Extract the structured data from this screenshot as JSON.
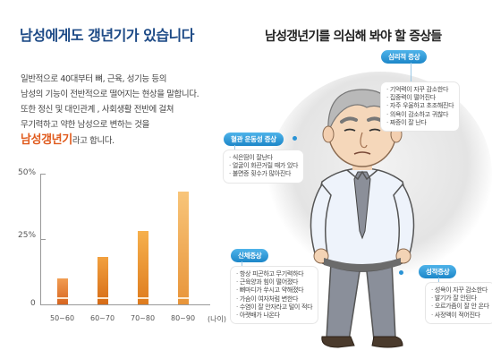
{
  "header": {
    "left_title": "남성에게도 갱년기가 있습니다",
    "right_title": "남성갱년기를 의심해 봐야 할 증상들"
  },
  "intro": {
    "lines": [
      "일반적으로 40대부터 뼈, 근육, 성기능 등의",
      "남성의 기능이 전반적으로 떨어지는 현상을 말합니다.",
      "또한 정신 및 대인관계 , 사회생활 전반에 걸쳐",
      "무기력하고 약한 남성으로 변하는 것을"
    ],
    "highlight": "남성갱년기",
    "suffix": "라고 합니다."
  },
  "chart_data": {
    "type": "bar",
    "categories": [
      "50~60",
      "60~70",
      "70~80",
      "80~90"
    ],
    "values": [
      10,
      18,
      28,
      43
    ],
    "ylim": [
      0,
      50
    ],
    "yticks": [
      "50%",
      "25%",
      "0"
    ],
    "xunit": "(나이)",
    "colors": [
      "#d76520",
      "#d66b16",
      "#de7b1e",
      "#e8953a"
    ]
  },
  "symptoms": {
    "psych": {
      "label": "심리적 증상",
      "items": [
        "기억력이 자꾸 감소한다",
        "집중력이 떨어진다",
        "자주 우울하고 초조해진다",
        "의욕이 감소하고 귀찮다",
        "짜증이 잘 난다"
      ]
    },
    "vascular": {
      "label": "혈관 운동성 증상",
      "items": [
        "식은땀이 잘난다",
        "얼굴이 화끈거릴 때가 있다",
        "불면증 횟수가 많아진다"
      ]
    },
    "physical": {
      "label": "신체증상",
      "items": [
        "항상 피곤하고 무기력하다",
        "근육양과 힘이 떨어졌다",
        "뼈마디가 쑤시고 약해졌다",
        "가슴이 여자처럼 변한다",
        "수염이 잘 안자라고 털이 적다",
        "아랫배가 나온다"
      ]
    },
    "sexual": {
      "label": "성적증상",
      "items": [
        "성욕이 자꾸 감소한다",
        "발기가 잘 안된다",
        "오르가즘이 잘 안 온다",
        "사정액이 적어진다"
      ]
    }
  }
}
